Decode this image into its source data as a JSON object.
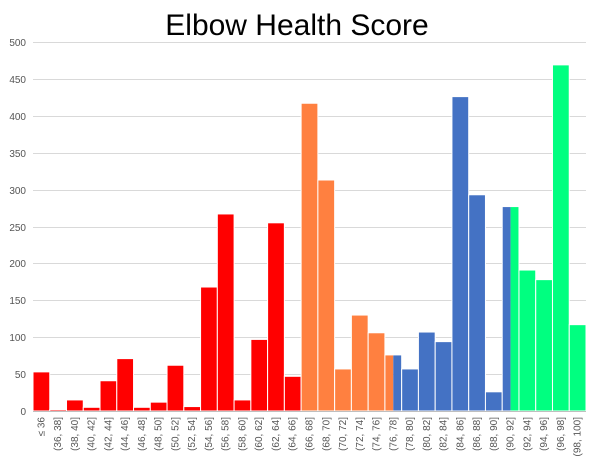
{
  "chart_data": {
    "type": "bar",
    "title": "Elbow Health Score",
    "xlabel": "",
    "ylabel": "",
    "ylim": [
      0,
      500
    ],
    "yticks": [
      0,
      50,
      100,
      150,
      200,
      250,
      300,
      350,
      400,
      450,
      500
    ],
    "grid": true,
    "legend": "none",
    "categories": [
      "≤ 36",
      "(36, 38]",
      "(38, 40]",
      "(40, 42]",
      "(42, 44]",
      "(44, 46]",
      "(46, 48]",
      "(48, 50]",
      "(50, 52]",
      "(52, 54]",
      "(54, 56]",
      "(56, 58]",
      "(58, 60]",
      "(60, 62]",
      "(62, 64]",
      "(64, 66]",
      "(66, 68]",
      "(68, 70]",
      "(70, 72]",
      "(72, 74]",
      "(74, 76]",
      "(76, 78]",
      "(78, 80]",
      "(80, 82]",
      "(82, 84]",
      "(84, 86]",
      "(86, 88]",
      "(88, 90]",
      "(90, 92]",
      "(92, 94]",
      "(94, 96]",
      "(96, 98]",
      "(98, 100]"
    ],
    "values": [
      53,
      2,
      15,
      5,
      41,
      71,
      5,
      12,
      62,
      6,
      168,
      267,
      15,
      97,
      255,
      47,
      417,
      313,
      57,
      130,
      106,
      76,
      57,
      107,
      94,
      426,
      293,
      26,
      277,
      191,
      178,
      469,
      117
    ],
    "colors": [
      "#ff0000",
      "#ff0000",
      "#ff0000",
      "#ff0000",
      "#ff0000",
      "#ff0000",
      "#ff0000",
      "#ff0000",
      "#ff0000",
      "#ff0000",
      "#ff0000",
      "#ff0000",
      "#ff0000",
      "#ff0000",
      "#ff0000",
      "#ff0000",
      "#ff8040",
      "#ff8040",
      "#ff8040",
      "#ff8040",
      "#ff8040",
      "#ff8040",
      "#4472c4",
      "#4472c4",
      "#4472c4",
      "#4472c4",
      "#4472c4",
      "#4472c4",
      "#00ff80",
      "#00ff80",
      "#00ff80",
      "#00ff80",
      "#00ff80"
    ],
    "split_bars": [
      {
        "index": 21,
        "colors": [
          "#ff8040",
          "#4472c4"
        ]
      },
      {
        "index": 28,
        "colors": [
          "#4472c4",
          "#00ff80"
        ]
      }
    ]
  }
}
